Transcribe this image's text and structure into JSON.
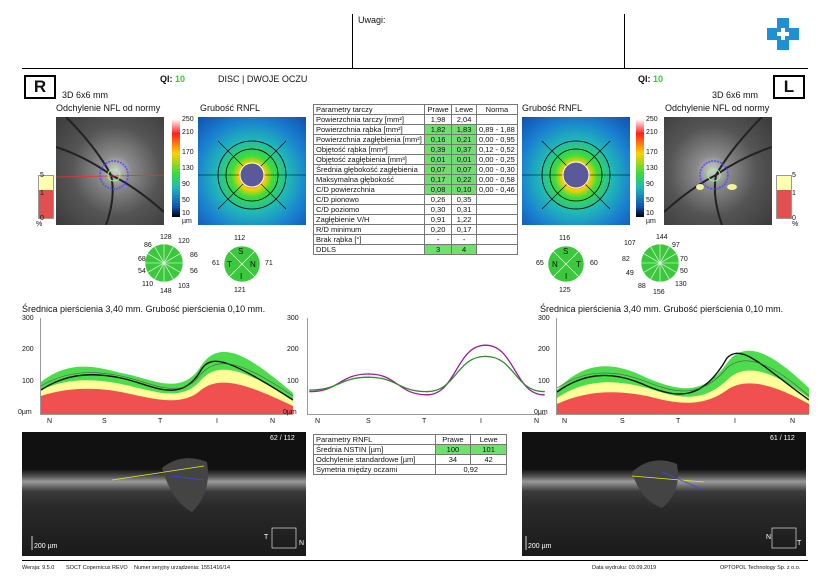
{
  "header": {
    "uwagi_label": "Uwagi:",
    "left_eye": "R",
    "right_eye": "L",
    "qi_label": "QI:",
    "qi_left": "10",
    "qi_right": "10",
    "mode": "DISC | DWOJE OCZU",
    "scan_size": "3D  6x6 mm"
  },
  "panels": {
    "nfl_deviation": "Odchylenie NFL od normy",
    "rnfl_thickness": "Grubość RNFL",
    "scale_pct": [
      "5",
      "1",
      "0",
      "%"
    ],
    "scale_um": [
      "250",
      "210",
      "170",
      "130",
      "90",
      "50",
      "10",
      "0",
      "µm"
    ]
  },
  "disc_table": {
    "headers": [
      "Parametry tarczy",
      "Prawe",
      "Lewe",
      "Norma"
    ],
    "rows": [
      {
        "label": "Powierzchnia tarczy [mm²]",
        "r": "1,98",
        "l": "2,04",
        "n": "",
        "g": false
      },
      {
        "label": "Powierzchnia rąbka [mm²]",
        "r": "1,82",
        "l": "1,83",
        "n": "0,89 - 1,88",
        "g": true
      },
      {
        "label": "Powierzchnia zagłębienia [mm²]",
        "r": "0,16",
        "l": "0,21",
        "n": "0,00 - 0,95",
        "g": true
      },
      {
        "label": "Objętość rąbka [mm³]",
        "r": "0,39",
        "l": "0,37",
        "n": "0,12 - 0,52",
        "g": true
      },
      {
        "label": "Objętość zagłębienia [mm³]",
        "r": "0,01",
        "l": "0,01",
        "n": "0,00 - 0,25",
        "g": true
      },
      {
        "label": "Średnia głębokość zagłębienia",
        "r": "0,07",
        "l": "0,07",
        "n": "0,00 - 0,30",
        "g": true
      },
      {
        "label": "Maksymalna głębokość",
        "r": "0,17",
        "l": "0,22",
        "n": "0,00 - 0,58",
        "g": true
      },
      {
        "label": "C/D powierzchnia",
        "r": "0,08",
        "l": "0,10",
        "n": "0,00 - 0,46",
        "g": true
      },
      {
        "label": "C/D pionowo",
        "r": "0,26",
        "l": "0,35",
        "n": "",
        "g": false
      },
      {
        "label": "C/D poziomo",
        "r": "0,30",
        "l": "0,31",
        "n": "",
        "g": false
      },
      {
        "label": "Zagłębienie V/H",
        "r": "0,91",
        "l": "1,22",
        "n": "",
        "g": false
      },
      {
        "label": "R/D minimum",
        "r": "0,20",
        "l": "0,17",
        "n": "",
        "g": false
      },
      {
        "label": "Brak rąbka [°]",
        "r": "-",
        "l": "-",
        "n": "",
        "g": false
      },
      {
        "label": "DDLS",
        "r": "3",
        "l": "4",
        "n": "",
        "g": true
      }
    ]
  },
  "clock_right": {
    "values": [
      "128",
      "120",
      "86",
      "86",
      "68",
      "56",
      "54",
      "103",
      "110",
      "148"
    ]
  },
  "quad_right": {
    "top": "112",
    "left": "61",
    "right": "71",
    "bottom": "121",
    "S": "S",
    "T": "T",
    "N": "N",
    "I": "I"
  },
  "clock_left": {
    "values": [
      "144",
      "97",
      "107",
      "70",
      "82",
      "50",
      "49",
      "130",
      "88",
      "156"
    ]
  },
  "quad_left": {
    "top": "116",
    "left": "65",
    "right": "60",
    "bottom": "125",
    "S": "S",
    "T": "T",
    "N": "N",
    "I": "I"
  },
  "ring": {
    "title": "Średnica pierścienia 3,40 mm. Grubość pierścienia 0,10 mm.",
    "yticks": [
      "300",
      "200",
      "100",
      "0µm"
    ],
    "xlabels_right": [
      "N",
      "S",
      "T",
      "I",
      "N"
    ],
    "xlabels_mid": [
      "N",
      "S",
      "T",
      "I",
      "N"
    ],
    "xlabels_left": [
      "N",
      "S",
      "T",
      "I",
      "N"
    ]
  },
  "chart_data": {
    "type": "line",
    "x": [
      "N",
      "S",
      "T",
      "I",
      "N"
    ],
    "ylim": [
      0,
      300
    ],
    "series": [
      {
        "name": "Prawe",
        "color": "#9b1f9b",
        "values": [
          70,
          125,
          60,
          215,
          60
        ]
      },
      {
        "name": "Lewe",
        "color": "#2e8b2e",
        "values": [
          75,
          115,
          70,
          180,
          70
        ]
      }
    ]
  },
  "rnfl_table": {
    "headers": [
      "Parametry RNFL",
      "Prawe",
      "Lewe"
    ],
    "rows": [
      {
        "label": "Średnia NSTIN [µm]",
        "r": "100",
        "l": "101",
        "g": true
      },
      {
        "label": "Odchylenie standardowe [µm]",
        "r": "34",
        "l": "42",
        "g": false
      }
    ],
    "sym_label": "Symetria między oczami",
    "sym_value": "0,92"
  },
  "bscan": {
    "right_counter": "62 / 112",
    "left_counter": "61 / 112",
    "scale": "200 µm",
    "t": "T",
    "n": "N"
  },
  "footer": {
    "version": "Wersja: 9.5.0",
    "device": "SOCT Copernicus REVO",
    "serial": "Numer seryjny urządzenia: 1551416/14",
    "print_date": "Data wydruku: 03.09.2019",
    "company": "OPTOPOL Technology Sp. z o.o."
  },
  "colors": {
    "green": "#33cc33",
    "logo": "#1e90d6"
  }
}
